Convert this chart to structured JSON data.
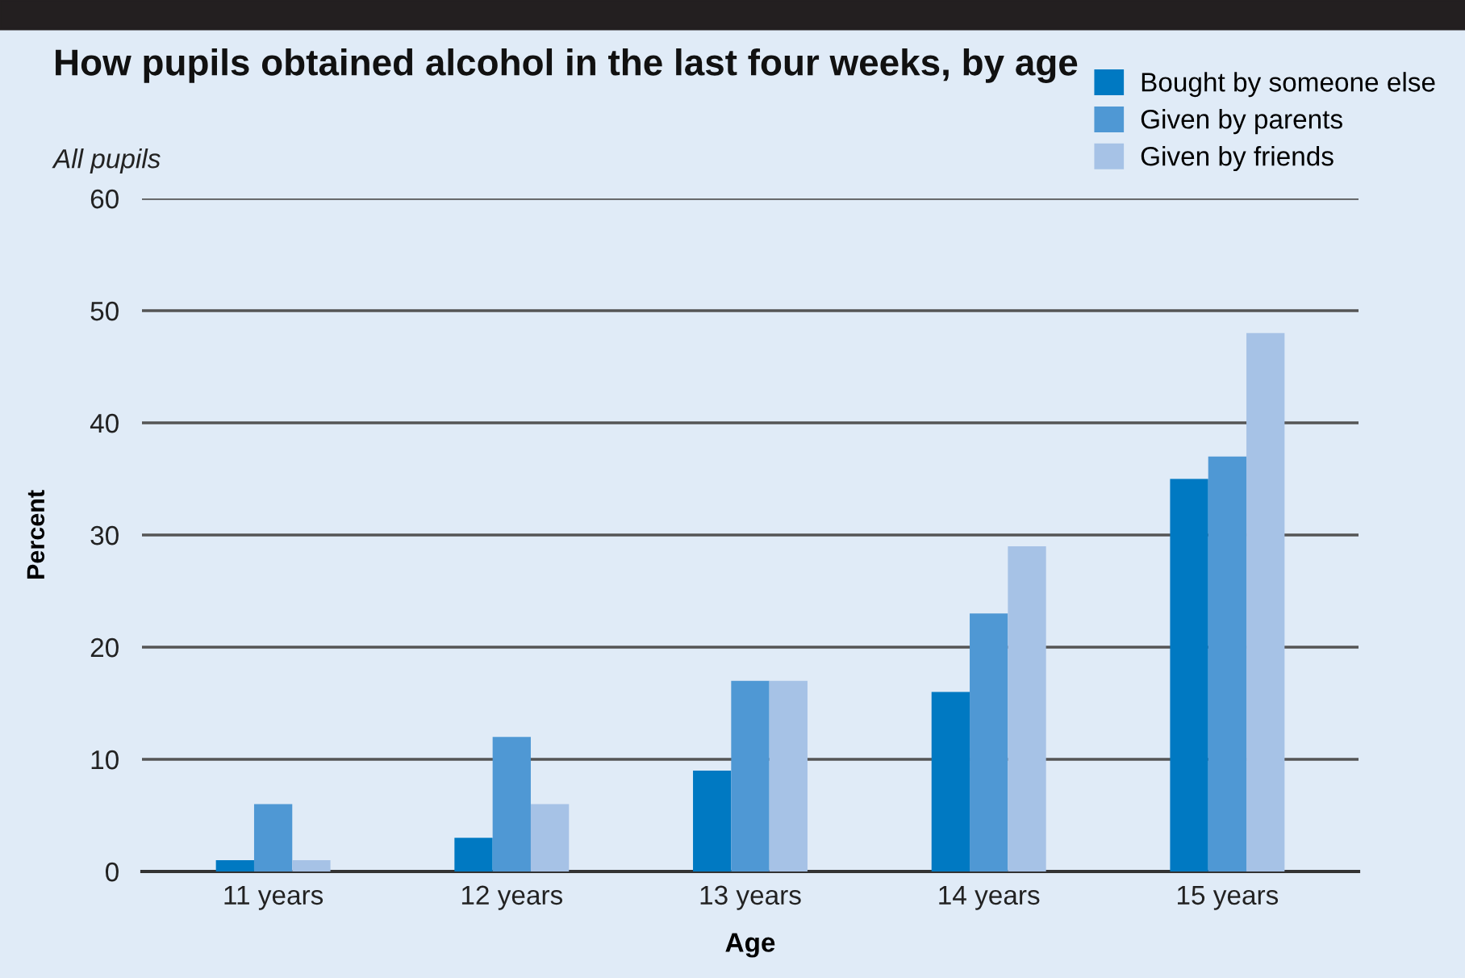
{
  "chart_data": {
    "type": "bar",
    "title": "How pupils obtained alcohol in the last four weeks, by age",
    "subtitle": "All pupils",
    "xlabel": "Age",
    "ylabel": "Percent",
    "categories": [
      "11 years",
      "12 years",
      "13 years",
      "14 years",
      "15 years"
    ],
    "series": [
      {
        "name": "Bought by someone else",
        "color": "#0079c2",
        "values": [
          1,
          3,
          9,
          16,
          35
        ]
      },
      {
        "name": "Given by parents",
        "color": "#4f98d4",
        "values": [
          6,
          12,
          17,
          23,
          37
        ]
      },
      {
        "name": "Given by friends",
        "color": "#a6c2e6",
        "values": [
          1,
          6,
          17,
          29,
          48
        ]
      }
    ],
    "ylim": [
      0,
      60
    ],
    "yticks": [
      0,
      10,
      20,
      30,
      40,
      50,
      60
    ],
    "grid": "y",
    "legend": "top right"
  }
}
